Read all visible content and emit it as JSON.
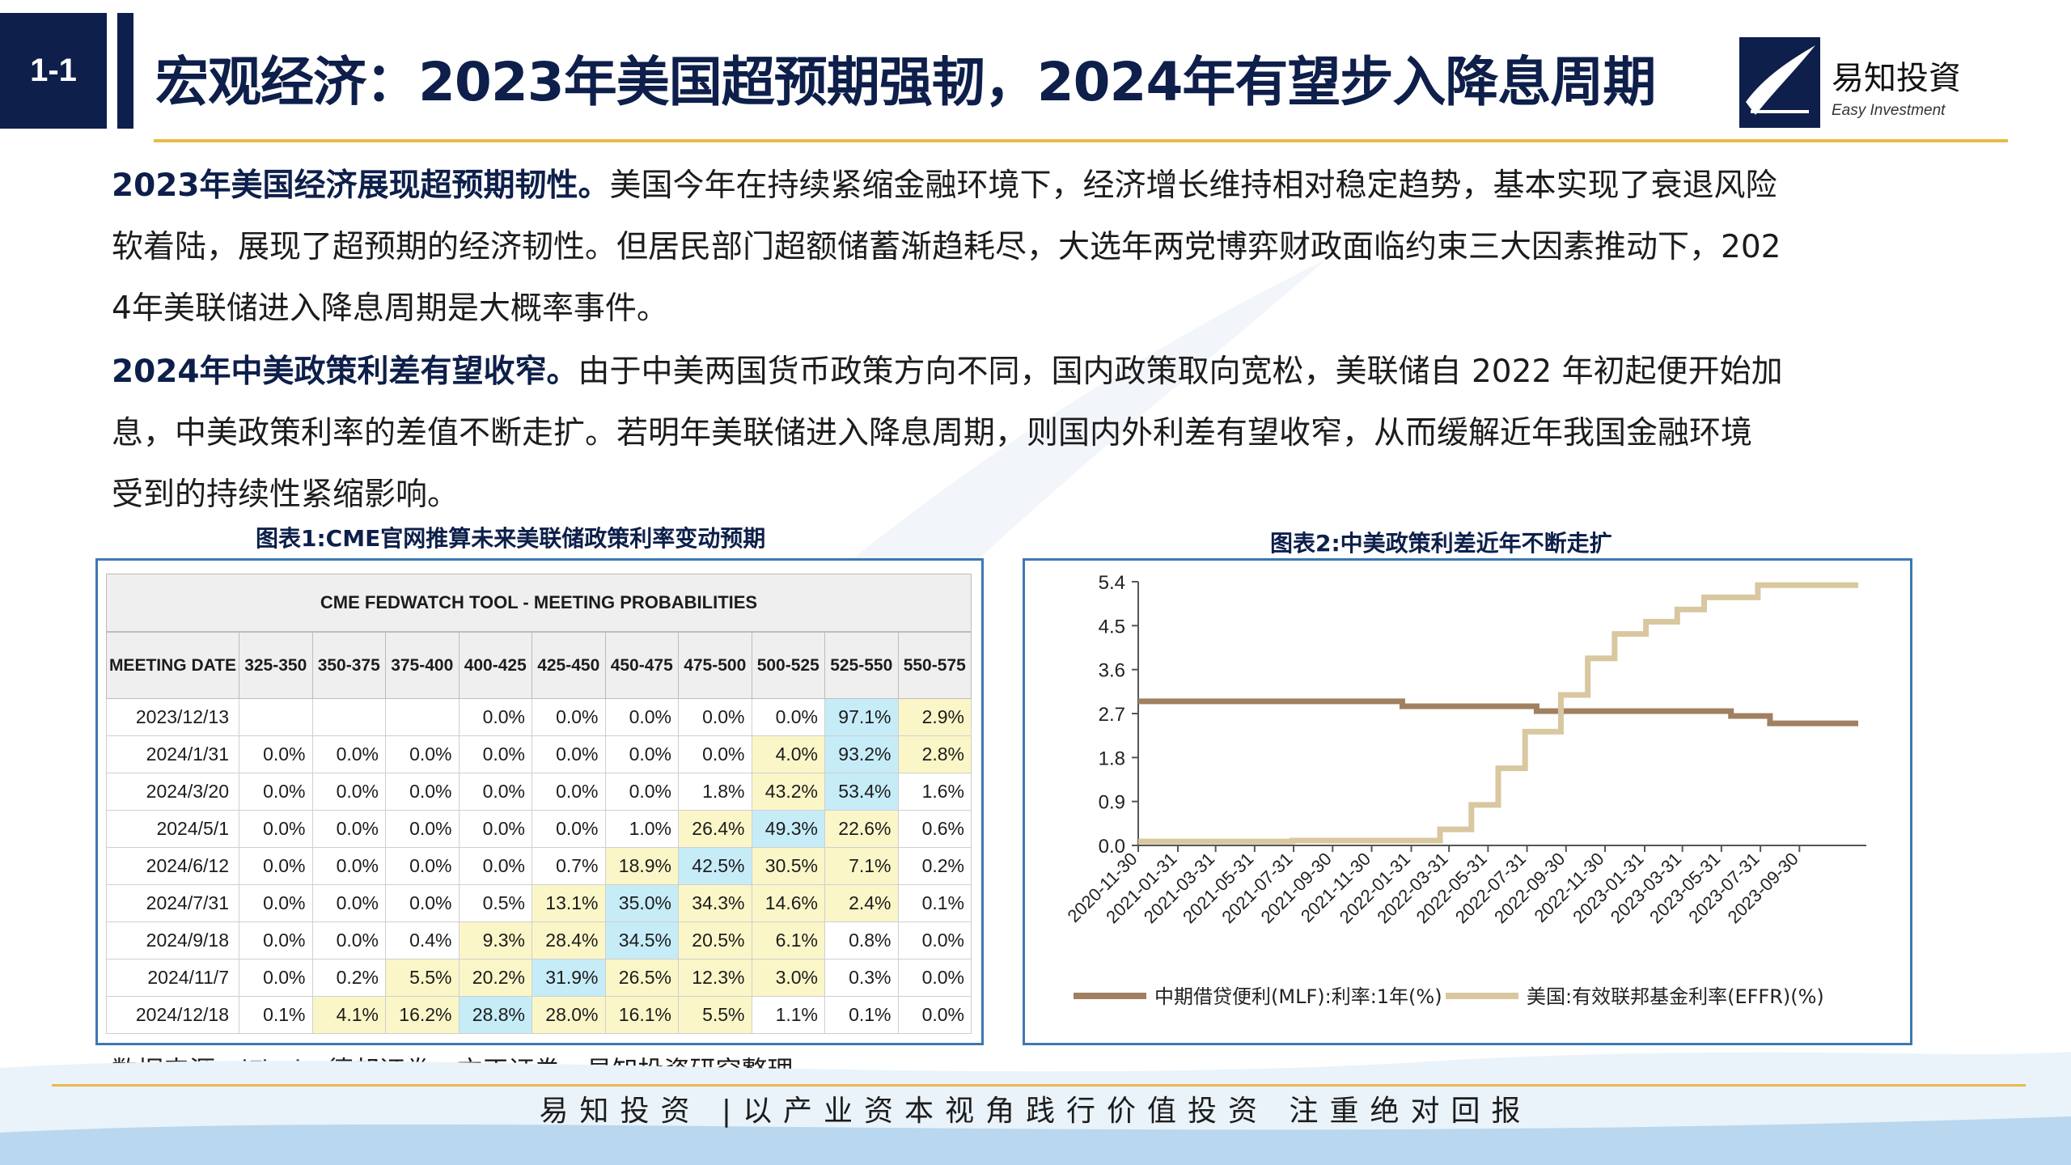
{
  "header": {
    "section": "1-1",
    "title": "宏观经济：2023年美国超预期强韧，2024年有望步入降息周期",
    "logo_cn": "易知投資",
    "logo_en": "Easy Investment"
  },
  "paragraphs": [
    {
      "lead": "2023年美国经济展现超预期韧性。",
      "lines": [
        "美国今年在持续紧缩金融环境下，经济增长维持相对稳定趋势，基本实现了衰退风险",
        "软着陆，展现了超预期的经济韧性。但居民部门超额储蓄渐趋耗尽，大选年两党博弈财政面临约束三大因素推动下，202",
        "4年美联储进入降息周期是大概率事件。"
      ]
    },
    {
      "lead": "2024年中美政策利差有望收窄。",
      "lines": [
        "由于中美两国货币政策方向不同，国内政策取向宽松，美联储自 2022 年初起便开始加",
        "息，中美政策利率的差值不断走扩。若明年美联储进入降息周期，则国内外利差有望收窄，从而缓解近年我国金融环境",
        "受到的持续性紧缩影响。"
      ]
    }
  ],
  "chart_titles": {
    "chart1": "图表1:CME官网推算未来美联储政策利率变动预期",
    "chart2": "图表2:中美政策利差近年不断走扩"
  },
  "source": "数据来源：iFind，德邦证券，方正证券，易知投资研究整理",
  "footer": "易知投资 |以产业资本视角践行价值投资  注重绝对回报",
  "chart_data": [
    {
      "type": "table",
      "title": "CME FEDWATCH TOOL - MEETING PROBABILITIES",
      "columns": [
        "MEETING DATE",
        "325-350",
        "350-375",
        "375-400",
        "400-425",
        "425-450",
        "450-475",
        "475-500",
        "500-525",
        "525-550",
        "550-575"
      ],
      "rows": [
        {
          "date": "2023/12/13",
          "values": [
            "",
            "",
            "",
            "0.0%",
            "0.0%",
            "0.0%",
            "0.0%",
            "0.0%",
            "97.1%",
            "2.9%"
          ]
        },
        {
          "date": "2024/1/31",
          "values": [
            "0.0%",
            "0.0%",
            "0.0%",
            "0.0%",
            "0.0%",
            "0.0%",
            "0.0%",
            "4.0%",
            "93.2%",
            "2.8%"
          ]
        },
        {
          "date": "2024/3/20",
          "values": [
            "0.0%",
            "0.0%",
            "0.0%",
            "0.0%",
            "0.0%",
            "0.0%",
            "1.8%",
            "43.2%",
            "53.4%",
            "1.6%"
          ]
        },
        {
          "date": "2024/5/1",
          "values": [
            "0.0%",
            "0.0%",
            "0.0%",
            "0.0%",
            "0.0%",
            "1.0%",
            "26.4%",
            "49.3%",
            "22.6%",
            "0.6%"
          ]
        },
        {
          "date": "2024/6/12",
          "values": [
            "0.0%",
            "0.0%",
            "0.0%",
            "0.0%",
            "0.7%",
            "18.9%",
            "42.5%",
            "30.5%",
            "7.1%",
            "0.2%"
          ]
        },
        {
          "date": "2024/7/31",
          "values": [
            "0.0%",
            "0.0%",
            "0.0%",
            "0.5%",
            "13.1%",
            "35.0%",
            "34.3%",
            "14.6%",
            "2.4%",
            "0.1%"
          ]
        },
        {
          "date": "2024/9/18",
          "values": [
            "0.0%",
            "0.0%",
            "0.4%",
            "9.3%",
            "28.4%",
            "34.5%",
            "20.5%",
            "6.1%",
            "0.8%",
            "0.0%"
          ]
        },
        {
          "date": "2024/11/7",
          "values": [
            "0.0%",
            "0.2%",
            "5.5%",
            "20.2%",
            "31.9%",
            "26.5%",
            "12.3%",
            "3.0%",
            "0.3%",
            "0.0%"
          ]
        },
        {
          "date": "2024/12/18",
          "values": [
            "0.1%",
            "4.1%",
            "16.2%",
            "28.8%",
            "28.0%",
            "16.1%",
            "5.5%",
            "1.1%",
            "0.1%",
            "0.0%"
          ]
        }
      ],
      "highlight_max_color": "#c6ecf8",
      "highlight_other_color": "#fbf6c8"
    },
    {
      "type": "line",
      "ylim": [
        0,
        5.4
      ],
      "yticks": [
        0.0,
        0.9,
        1.8,
        2.7,
        3.6,
        4.5,
        5.4
      ],
      "xticks": [
        "2020-11-30",
        "2021-01-31",
        "2021-03-31",
        "2021-05-31",
        "2021-07-31",
        "2021-09-30",
        "2021-11-30",
        "2022-01-31",
        "2022-03-31",
        "2022-05-31",
        "2022-07-31",
        "2022-09-30",
        "2022-11-30",
        "2023-01-31",
        "2023-03-31",
        "2023-05-31",
        "2023-07-31",
        "2023-09-30"
      ],
      "x_end": "2023-12-31",
      "grid": false,
      "legend_position": "bottom",
      "series": [
        {
          "name": "中期借贷便利(MLF):利率:1年(%)",
          "color": "#a08060",
          "points": [
            [
              "2020-11-30",
              2.95
            ],
            [
              "2022-01-17",
              2.85
            ],
            [
              "2022-08-15",
              2.75
            ],
            [
              "2023-06-15",
              2.65
            ],
            [
              "2023-08-15",
              2.5
            ],
            [
              "2023-12-31",
              2.5
            ]
          ]
        },
        {
          "name": "美国:有效联邦基金利率(EFFR)(%)",
          "color": "#d9c7a0",
          "points": [
            [
              "2020-11-30",
              0.08
            ],
            [
              "2021-07-29",
              0.1
            ],
            [
              "2022-03-17",
              0.33
            ],
            [
              "2022-05-05",
              0.83
            ],
            [
              "2022-06-16",
              1.58
            ],
            [
              "2022-07-28",
              2.33
            ],
            [
              "2022-09-22",
              3.08
            ],
            [
              "2022-11-03",
              3.83
            ],
            [
              "2022-12-15",
              4.33
            ],
            [
              "2023-02-02",
              4.58
            ],
            [
              "2023-03-23",
              4.83
            ],
            [
              "2023-05-04",
              5.08
            ],
            [
              "2023-07-27",
              5.33
            ],
            [
              "2023-12-31",
              5.33
            ]
          ]
        }
      ]
    }
  ]
}
